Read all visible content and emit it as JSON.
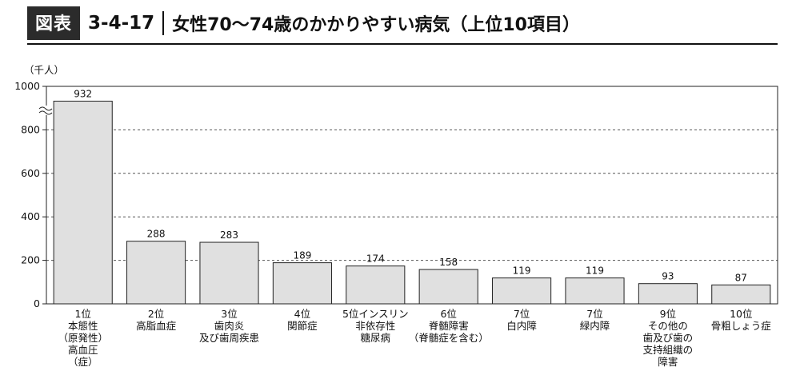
{
  "figure": {
    "badge": "図表",
    "number": "3-4-17",
    "title": "女性70～74歳のかかりやすい病気（上位10項目）"
  },
  "chart_data": {
    "type": "bar",
    "title": "女性70～74歳のかかりやすい病気（上位10項目）",
    "ylabel": "（千人）",
    "ylim": [
      0,
      1000
    ],
    "yticks": [
      0,
      200,
      400,
      600,
      800,
      1000
    ],
    "axis_break": true,
    "grid": "dashed horizontal",
    "categories": [
      "1位\n本態性\n（原発性）\n高血圧\n（症）",
      "2位\n高脂血症",
      "3位\n歯肉炎\n及び歯周疾患",
      "4位\n関節症",
      "5位インスリン\n非依存性\n糖尿病",
      "6位\n脊髄障害\n（脊髄症を含む）",
      "7位\n白内障",
      "7位\n緑内障",
      "9位\nその他の\n歯及び歯の\n支持組織の\n障害",
      "10位\n骨粗しょう症"
    ],
    "values": [
      932,
      288,
      283,
      189,
      174,
      158,
      119,
      119,
      93,
      87
    ],
    "bar_color": "#e0e0e0"
  }
}
